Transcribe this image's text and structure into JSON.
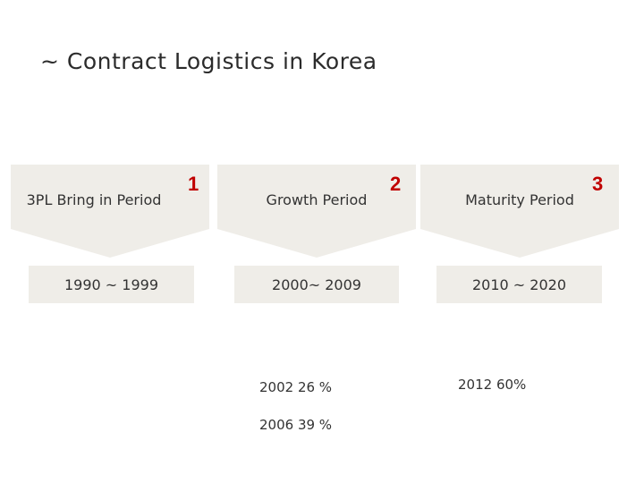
{
  "title": "~ Contract Logistics in Korea",
  "colors": {
    "shape_fill": "#efede8",
    "number_color": "#c00000"
  },
  "stages": [
    {
      "label": "3PL Bring in Period",
      "number": "1",
      "period": "1990 ~ 1999"
    },
    {
      "label": "Growth Period",
      "number": "2",
      "period": "2000~ 2009"
    },
    {
      "label": "Maturity Period",
      "number": "3",
      "period": "2010 ~ 2020"
    }
  ],
  "stats": {
    "growth": [
      "2002 26 %",
      "2006 39 %"
    ],
    "maturity": [
      "2012 60%"
    ]
  }
}
